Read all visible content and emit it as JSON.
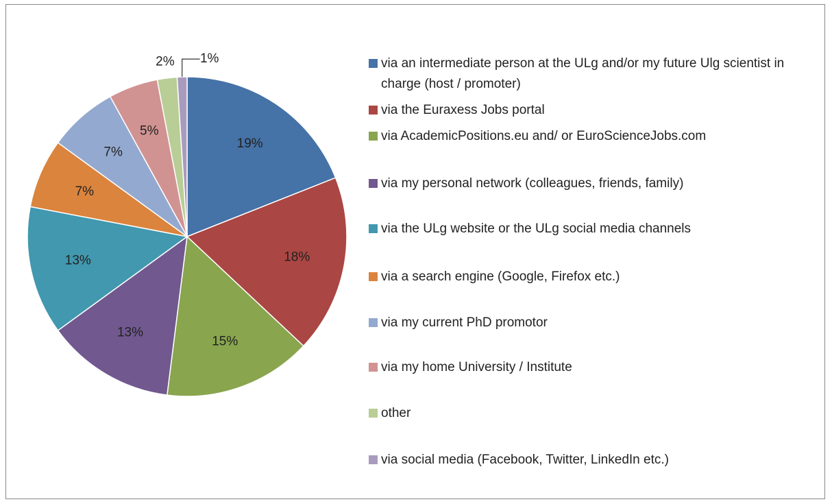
{
  "chart_data": {
    "type": "pie",
    "categories": [
      "via an intermediate person at the ULg and/or my future Ulg scientist in charge (host / promoter)",
      "via the Euraxess Jobs portal",
      "via AcademicPositions.eu and/ or EuroScienceJobs.com",
      "via my personal network (colleagues, friends, family)",
      "via the ULg website or the ULg social media channels",
      "via a search engine (Google, Firefox etc.)",
      "via my current PhD promotor",
      "via my home University / Institute",
      "other",
      "via social media (Facebook, Twitter, LinkedIn etc.)"
    ],
    "values": [
      19,
      18,
      15,
      13,
      13,
      7,
      7,
      5,
      2,
      1
    ],
    "value_labels": [
      "19%",
      "18%",
      "15%",
      "13%",
      "13%",
      "7%",
      "7%",
      "5%",
      "2%",
      "1%"
    ],
    "colors": [
      "#4572a7",
      "#aa4643",
      "#89a54e",
      "#71588f",
      "#4198af",
      "#db843d",
      "#93a9cf",
      "#d19392",
      "#b9cd96",
      "#a99bbd"
    ],
    "legend": "right"
  }
}
